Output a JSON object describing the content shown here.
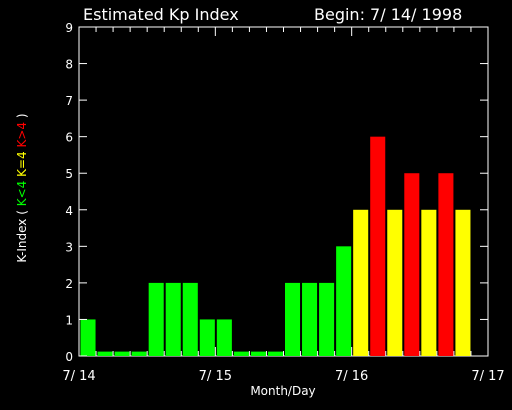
{
  "chart_data": {
    "type": "bar",
    "title": "Estimated Kp Index",
    "begin_label": "Begin: 7/ 14/ 1998",
    "xlabel": "Month/Day",
    "ylabel_prefix": "K-Index",
    "ylabel_parts": [
      {
        "text": "K<4",
        "color": "#00ff00"
      },
      {
        "text": "K=4",
        "color": "#ffff00"
      },
      {
        "text": "K>4",
        "color": "#ff0000"
      }
    ],
    "ylim": [
      0,
      9
    ],
    "yticks": [
      0,
      1,
      2,
      3,
      4,
      5,
      6,
      7,
      8,
      9
    ],
    "xlim": [
      0,
      24
    ],
    "xticks": [
      {
        "pos": 0,
        "label": "7/ 14"
      },
      {
        "pos": 8,
        "label": "7/ 15"
      },
      {
        "pos": 16,
        "label": "7/ 16"
      },
      {
        "pos": 24,
        "label": "7/ 17"
      }
    ],
    "values": [
      1,
      0,
      0,
      0,
      2,
      2,
      2,
      1,
      1,
      0,
      0,
      0,
      2,
      2,
      2,
      3,
      4,
      6,
      4,
      5,
      4,
      5,
      4
    ],
    "colors": {
      "low": "#00ff00",
      "mid": "#ffff00",
      "high": "#ff0000"
    }
  }
}
